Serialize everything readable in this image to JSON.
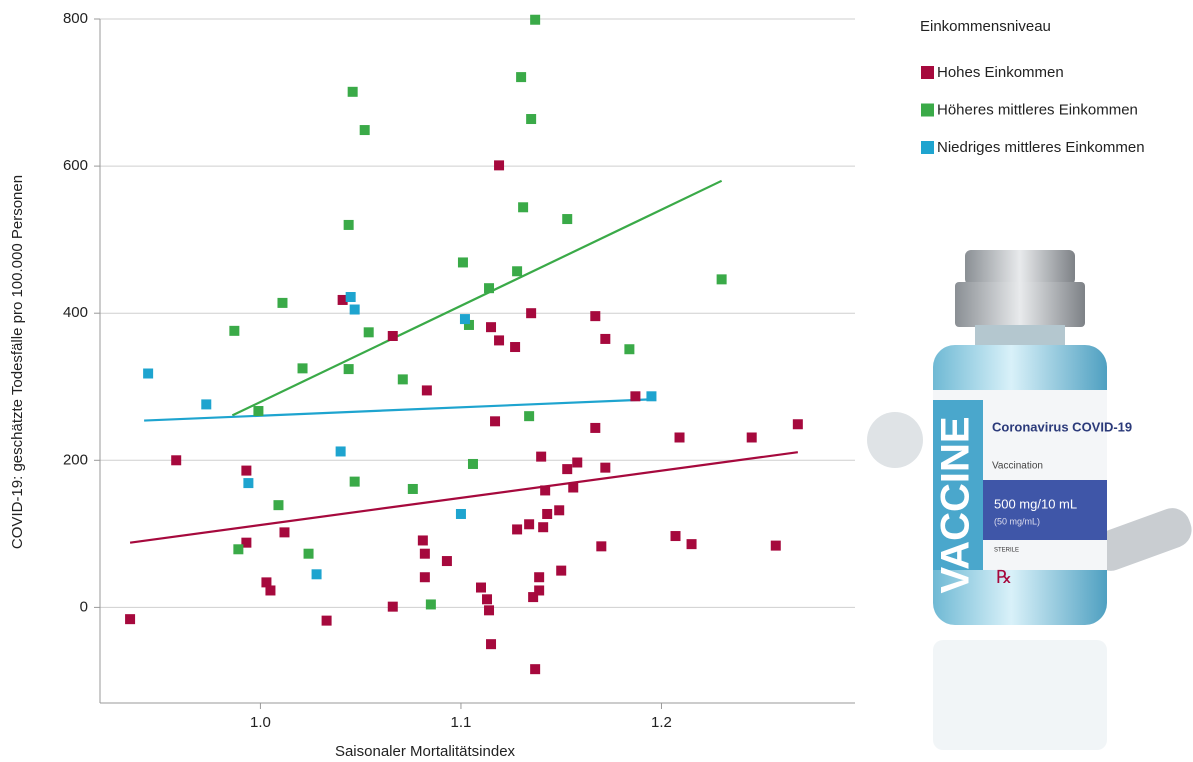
{
  "chart_data": {
    "type": "scatter",
    "x_label": "Saisonaler Mortalitätsindex",
    "y_label": "COVID-19: geschätzte Todesfälle pro 100.000 Personen",
    "legend_title": "Einkommensniveau",
    "legend_position": "right",
    "grid": true,
    "xlim": [
      0.92,
      1.3
    ],
    "xticks": [
      {
        "value": 1,
        "label": "1.0"
      },
      1.1,
      1.2
    ],
    "ylim": [
      -130,
      800
    ],
    "yticks": [
      0,
      200,
      400,
      600,
      800
    ],
    "series": [
      {
        "name": "Hohes Einkommen",
        "color": "#a6093d",
        "x": [
          0.935,
          0.958,
          0.993,
          0.993,
          1.003,
          1.005,
          1.012,
          1.033,
          1.041,
          1.066,
          1.066,
          1.081,
          1.082,
          1.082,
          1.083,
          1.093,
          1.11,
          1.113,
          1.114,
          1.115,
          1.115,
          1.117,
          1.119,
          1.119,
          1.127,
          1.128,
          1.134,
          1.135,
          1.136,
          1.137,
          1.139,
          1.139,
          1.14,
          1.141,
          1.142,
          1.143,
          1.15,
          1.149,
          1.153,
          1.156,
          1.158,
          1.167,
          1.167,
          1.17,
          1.172,
          1.172,
          1.187,
          1.207,
          1.209,
          1.215,
          1.245,
          1.257,
          1.268
        ],
        "values": [
          -16,
          200,
          186,
          88,
          34,
          23,
          102,
          -18,
          418,
          369,
          1,
          91,
          73,
          41,
          295,
          63,
          27,
          11,
          -4,
          -50,
          381,
          253,
          601,
          363,
          354,
          106,
          113,
          400,
          14,
          -84,
          23,
          41,
          205,
          109,
          159,
          127,
          50,
          132,
          188,
          163,
          197,
          396,
          244,
          83,
          190,
          365,
          287,
          97,
          231,
          86,
          231,
          84,
          249
        ],
        "trend": {
          "x": [
            0.935,
            1.268
          ],
          "values": [
            88,
            211
          ]
        }
      },
      {
        "name": "Höheres mittleres Einkommen",
        "color": "#3aaa48",
        "x": [
          1.137,
          1.13,
          1.046,
          1.135,
          1.052,
          1.131,
          1.153,
          1.044,
          1.101,
          1.128,
          1.114,
          1.23,
          1.011,
          0.987,
          1.104,
          1.054,
          1.184,
          1.021,
          1.044,
          1.071,
          0.999,
          1.134,
          1.106,
          1.047,
          1.076,
          1.009,
          0.989,
          1.024,
          1.085
        ],
        "values": [
          799,
          721,
          701,
          664,
          649,
          544,
          528,
          520,
          469,
          457,
          434,
          446,
          414,
          376,
          384,
          374,
          351,
          325,
          324,
          310,
          267,
          260,
          195,
          171,
          161,
          139,
          79,
          73,
          4
        ],
        "trend": {
          "x": [
            0.986,
            1.23
          ],
          "values": [
            261,
            580
          ]
        }
      },
      {
        "name": "Niedriges mittleres Einkommen",
        "color": "#1ea4cf",
        "x": [
          0.944,
          0.973,
          1.045,
          1.047,
          0.994,
          1.04,
          1.102,
          1.028,
          1.1,
          1.195
        ],
        "values": [
          318,
          276,
          422,
          405,
          169,
          212,
          392,
          45,
          127,
          287
        ],
        "trend": {
          "x": [
            0.942,
            1.196
          ],
          "values": [
            254,
            283
          ]
        }
      }
    ]
  },
  "image_text": {
    "vaccine": "VACCINE",
    "product": "Coronavirus COVID-19",
    "use": "Vaccination",
    "dose": "500 mg/10 mL",
    "concentration": "(50 mg/mL)",
    "sterile": "STERILE",
    "rx": "℞"
  }
}
